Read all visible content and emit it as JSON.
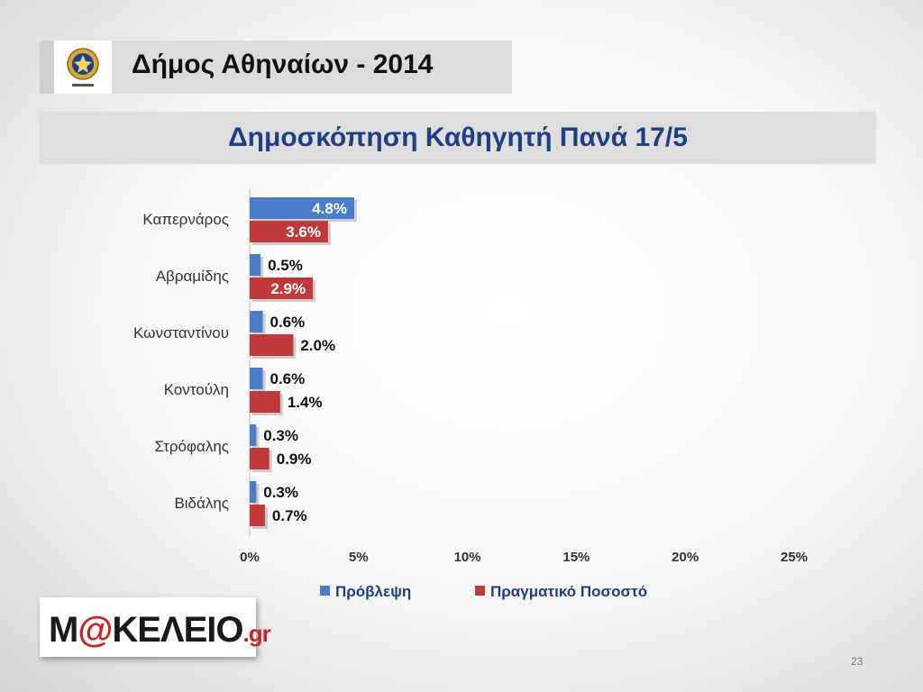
{
  "header": {
    "title": "Δήμος Αθηναίων - 2014"
  },
  "chart_title": "Δημοσκόπηση Καθηγητή Πανά 17/5",
  "chart_data": {
    "type": "bar",
    "orientation": "horizontal",
    "categories": [
      "Καπερνάρος",
      "Αβραμίδης",
      "Κωνσταντίνου",
      "Κοντούλη",
      "Στρόφαλης",
      "Βιδάλης"
    ],
    "series": [
      {
        "name": "Πρόβλεψη",
        "values": [
          4.8,
          0.5,
          0.6,
          0.6,
          0.3,
          0.3
        ],
        "labels": [
          "4.8%",
          "0.5%",
          "0.6%",
          "0.6%",
          "0.3%",
          "0.3%"
        ],
        "color": "#4a7cc9"
      },
      {
        "name": "Πραγματικό Ποσοστό",
        "values": [
          3.6,
          2.9,
          2.0,
          1.4,
          0.9,
          0.7
        ],
        "labels": [
          "3.6%",
          "2.9%",
          "2.0%",
          "1.4%",
          "0.9%",
          "0.7%"
        ],
        "color": "#c0393b"
      }
    ],
    "xlim": [
      0,
      25
    ],
    "xticks": [
      "0%",
      "5%",
      "10%",
      "15%",
      "20%",
      "25%"
    ],
    "legend": "bottom",
    "grid": false
  },
  "footer": {
    "brand": {
      "prefix": "M",
      "at": "@",
      "main": "ΚΕΛΕ",
      "mic": "Ι",
      "suffix": "Ο",
      "tld": ".gr"
    },
    "page_number": "23"
  }
}
